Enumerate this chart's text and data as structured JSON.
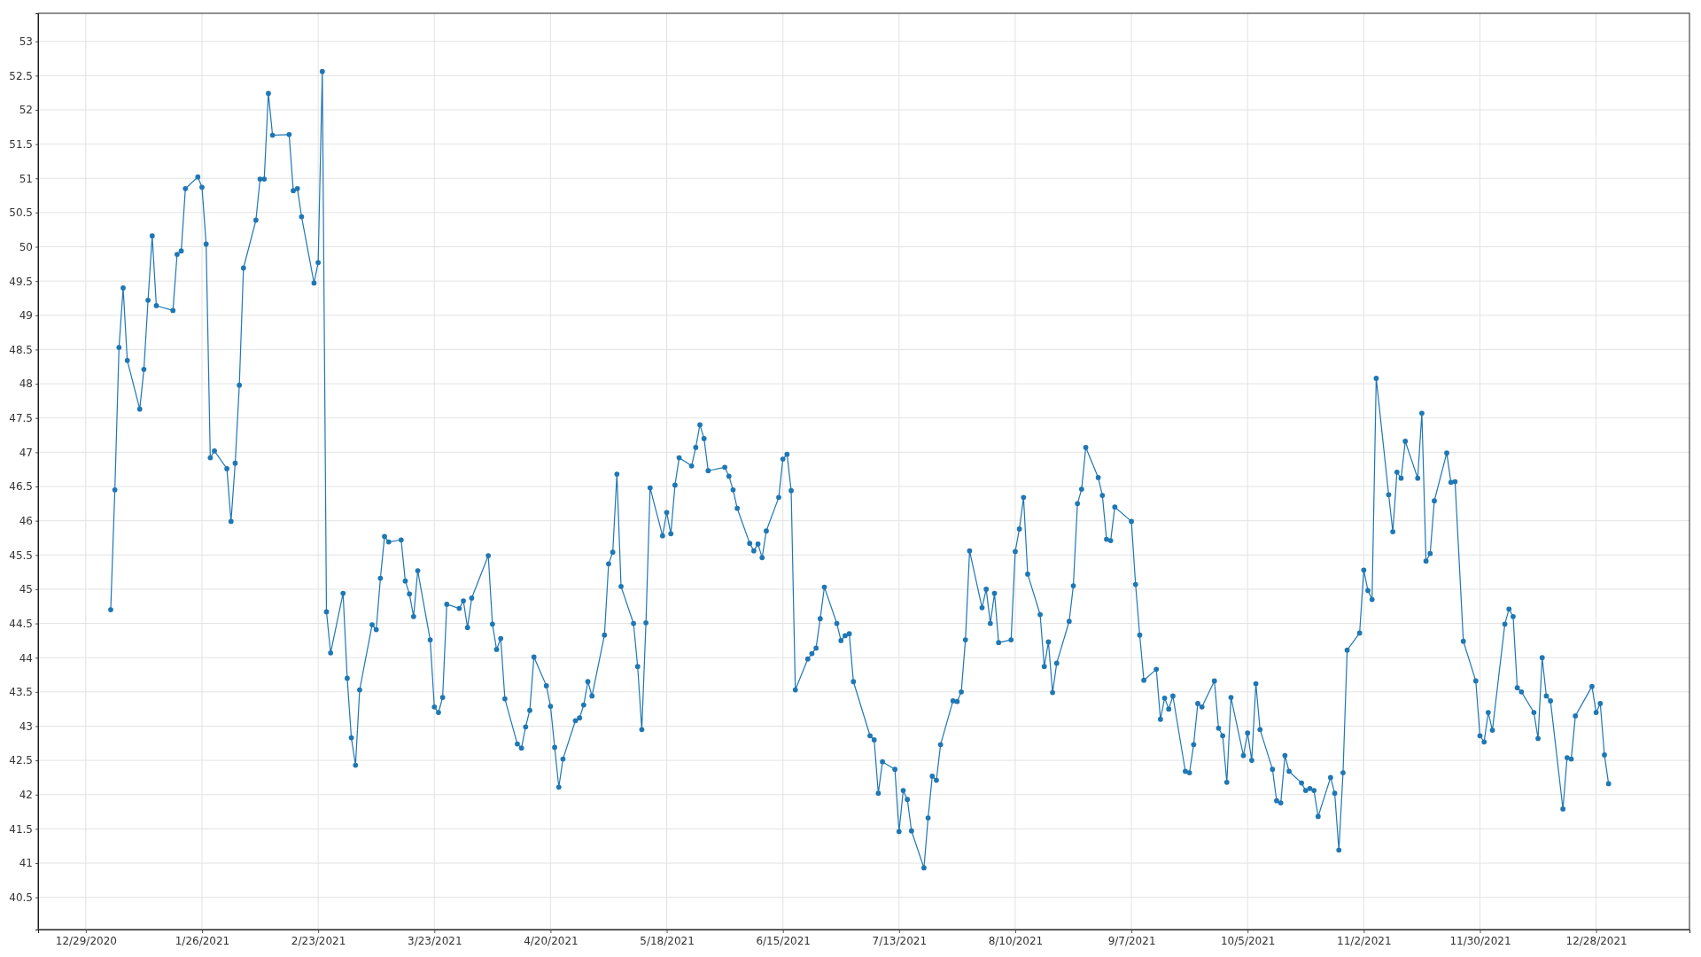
{
  "chart_data": {
    "type": "line",
    "color": "#1f77b4",
    "marker": "circle",
    "grid": true,
    "xlim": [
      "2020-12-17T12:00",
      "2022-01-19T12:00"
    ],
    "ylim": [
      40.03,
      53.41
    ],
    "xticks": [
      {
        "value": "2020-12-29",
        "label": "12/29/2020"
      },
      {
        "value": "2021-01-26",
        "label": "1/26/2021"
      },
      {
        "value": "2021-02-23",
        "label": "2/23/2021"
      },
      {
        "value": "2021-03-23",
        "label": "3/23/2021"
      },
      {
        "value": "2021-04-20",
        "label": "4/20/2021"
      },
      {
        "value": "2021-05-18",
        "label": "5/18/2021"
      },
      {
        "value": "2021-06-15",
        "label": "6/15/2021"
      },
      {
        "value": "2021-07-13",
        "label": "7/13/2021"
      },
      {
        "value": "2021-08-10",
        "label": "8/10/2021"
      },
      {
        "value": "2021-09-07",
        "label": "9/7/2021"
      },
      {
        "value": "2021-10-05",
        "label": "10/5/2021"
      },
      {
        "value": "2021-11-02",
        "label": "11/2/2021"
      },
      {
        "value": "2021-11-30",
        "label": "11/30/2021"
      },
      {
        "value": "2021-12-28",
        "label": "12/28/2021"
      }
    ],
    "yticks": [
      40.5,
      41,
      41.5,
      42,
      42.5,
      43,
      43.5,
      44,
      44.5,
      45,
      45.5,
      46,
      46.5,
      47,
      47.5,
      48,
      48.5,
      49,
      49.5,
      50,
      50.5,
      51,
      51.5,
      52,
      52.5,
      53
    ],
    "x": [
      "2021-01-04",
      "2021-01-05",
      "2021-01-06",
      "2021-01-07",
      "2021-01-08",
      "2021-01-11",
      "2021-01-12",
      "2021-01-13",
      "2021-01-14",
      "2021-01-15",
      "2021-01-19",
      "2021-01-20",
      "2021-01-21",
      "2021-01-22",
      "2021-01-25",
      "2021-01-26",
      "2021-01-27",
      "2021-01-28",
      "2021-01-29",
      "2021-02-01",
      "2021-02-02",
      "2021-02-03",
      "2021-02-04",
      "2021-02-05",
      "2021-02-08",
      "2021-02-09",
      "2021-02-10",
      "2021-02-11",
      "2021-02-12",
      "2021-02-16",
      "2021-02-17",
      "2021-02-18",
      "2021-02-19",
      "2021-02-22",
      "2021-02-23",
      "2021-02-24",
      "2021-02-25",
      "2021-02-26",
      "2021-03-01",
      "2021-03-02",
      "2021-03-03",
      "2021-03-04",
      "2021-03-05",
      "2021-03-08",
      "2021-03-09",
      "2021-03-10",
      "2021-03-11",
      "2021-03-12",
      "2021-03-15",
      "2021-03-16",
      "2021-03-17",
      "2021-03-18",
      "2021-03-19",
      "2021-03-22",
      "2021-03-23",
      "2021-03-24",
      "2021-03-25",
      "2021-03-26",
      "2021-03-29",
      "2021-03-30",
      "2021-03-31",
      "2021-04-01",
      "2021-04-05",
      "2021-04-06",
      "2021-04-07",
      "2021-04-08",
      "2021-04-09",
      "2021-04-12",
      "2021-04-13",
      "2021-04-14",
      "2021-04-15",
      "2021-04-16",
      "2021-04-19",
      "2021-04-20",
      "2021-04-21",
      "2021-04-22",
      "2021-04-23",
      "2021-04-26",
      "2021-04-27",
      "2021-04-28",
      "2021-04-29",
      "2021-04-30",
      "2021-05-03",
      "2021-05-04",
      "2021-05-05",
      "2021-05-06",
      "2021-05-07",
      "2021-05-10",
      "2021-05-11",
      "2021-05-12",
      "2021-05-13",
      "2021-05-14",
      "2021-05-17",
      "2021-05-18",
      "2021-05-19",
      "2021-05-20",
      "2021-05-21",
      "2021-05-24",
      "2021-05-25",
      "2021-05-26",
      "2021-05-27",
      "2021-05-28",
      "2021-06-01",
      "2021-06-02",
      "2021-06-03",
      "2021-06-04",
      "2021-06-07",
      "2021-06-08",
      "2021-06-09",
      "2021-06-10",
      "2021-06-11",
      "2021-06-14",
      "2021-06-15",
      "2021-06-16",
      "2021-06-17",
      "2021-06-18",
      "2021-06-21",
      "2021-06-22",
      "2021-06-23",
      "2021-06-24",
      "2021-06-25",
      "2021-06-28",
      "2021-06-29",
      "2021-06-30",
      "2021-07-01",
      "2021-07-02",
      "2021-07-06",
      "2021-07-07",
      "2021-07-08",
      "2021-07-09",
      "2021-07-12",
      "2021-07-13",
      "2021-07-14",
      "2021-07-15",
      "2021-07-16",
      "2021-07-19",
      "2021-07-20",
      "2021-07-21",
      "2021-07-22",
      "2021-07-23",
      "2021-07-26",
      "2021-07-27",
      "2021-07-28",
      "2021-07-29",
      "2021-07-30",
      "2021-08-02",
      "2021-08-03",
      "2021-08-04",
      "2021-08-05",
      "2021-08-06",
      "2021-08-09",
      "2021-08-10",
      "2021-08-11",
      "2021-08-12",
      "2021-08-13",
      "2021-08-16",
      "2021-08-17",
      "2021-08-18",
      "2021-08-19",
      "2021-08-20",
      "2021-08-23",
      "2021-08-24",
      "2021-08-25",
      "2021-08-26",
      "2021-08-27",
      "2021-08-30",
      "2021-08-31",
      "2021-09-01",
      "2021-09-02",
      "2021-09-03",
      "2021-09-07",
      "2021-09-08",
      "2021-09-09",
      "2021-09-10",
      "2021-09-13",
      "2021-09-14",
      "2021-09-15",
      "2021-09-16",
      "2021-09-17",
      "2021-09-20",
      "2021-09-21",
      "2021-09-22",
      "2021-09-23",
      "2021-09-24",
      "2021-09-27",
      "2021-09-28",
      "2021-09-29",
      "2021-09-30",
      "2021-10-01",
      "2021-10-04",
      "2021-10-05",
      "2021-10-06",
      "2021-10-07",
      "2021-10-08",
      "2021-10-11",
      "2021-10-12",
      "2021-10-13",
      "2021-10-14",
      "2021-10-15",
      "2021-10-18",
      "2021-10-19",
      "2021-10-20",
      "2021-10-21",
      "2021-10-22",
      "2021-10-25",
      "2021-10-26",
      "2021-10-27",
      "2021-10-28",
      "2021-10-29",
      "2021-11-01",
      "2021-11-02",
      "2021-11-03",
      "2021-11-04",
      "2021-11-05",
      "2021-11-08",
      "2021-11-09",
      "2021-11-10",
      "2021-11-11",
      "2021-11-12",
      "2021-11-15",
      "2021-11-16",
      "2021-11-17",
      "2021-11-18",
      "2021-11-19",
      "2021-11-22",
      "2021-11-23",
      "2021-11-24",
      "2021-11-26",
      "2021-11-29",
      "2021-11-30",
      "2021-12-01",
      "2021-12-02",
      "2021-12-03",
      "2021-12-06",
      "2021-12-07",
      "2021-12-08",
      "2021-12-09",
      "2021-12-10",
      "2021-12-13",
      "2021-12-14",
      "2021-12-15",
      "2021-12-16",
      "2021-12-17",
      "2021-12-20",
      "2021-12-21",
      "2021-12-22",
      "2021-12-23",
      "2021-12-27",
      "2021-12-28",
      "2021-12-29",
      "2021-12-30",
      "2021-12-31"
    ],
    "values": [
      44.7,
      46.45,
      48.53,
      49.4,
      48.34,
      47.63,
      48.21,
      49.22,
      50.16,
      49.14,
      49.07,
      49.89,
      49.94,
      50.85,
      51.02,
      50.87,
      50.04,
      46.92,
      47.02,
      46.76,
      45.99,
      46.84,
      47.98,
      49.69,
      50.39,
      50.99,
      50.99,
      52.24,
      51.63,
      51.64,
      50.82,
      50.85,
      50.44,
      49.47,
      49.77,
      52.56,
      44.67,
      44.07,
      44.94,
      43.7,
      42.83,
      42.43,
      43.53,
      44.48,
      44.41,
      45.16,
      45.77,
      45.69,
      45.72,
      45.12,
      44.93,
      44.6,
      45.27,
      44.26,
      43.28,
      43.2,
      43.42,
      44.78,
      44.72,
      44.83,
      44.44,
      44.87,
      45.49,
      44.49,
      44.12,
      44.28,
      43.4,
      42.74,
      42.68,
      42.99,
      43.23,
      44.01,
      43.59,
      43.29,
      42.69,
      42.11,
      42.52,
      43.08,
      43.12,
      43.31,
      43.65,
      43.44,
      44.33,
      45.37,
      45.54,
      46.68,
      45.04,
      44.5,
      43.87,
      42.95,
      44.51,
      46.48,
      45.78,
      46.12,
      45.81,
      46.52,
      46.92,
      46.8,
      47.07,
      47.4,
      47.2,
      46.73,
      46.78,
      46.65,
      46.45,
      46.18,
      45.67,
      45.56,
      45.66,
      45.46,
      45.85,
      46.34,
      46.9,
      46.97,
      46.44,
      43.53,
      43.98,
      44.06,
      44.14,
      44.57,
      45.03,
      44.5,
      44.25,
      44.32,
      44.35,
      43.65,
      42.86,
      42.8,
      42.02,
      42.48,
      42.37,
      41.46,
      42.06,
      41.93,
      41.47,
      40.93,
      41.66,
      42.27,
      42.21,
      42.73,
      43.37,
      43.36,
      43.5,
      44.26,
      45.56,
      44.73,
      45.0,
      44.5,
      44.94,
      44.22,
      44.26,
      45.55,
      45.88,
      46.34,
      45.22,
      44.63,
      43.87,
      44.23,
      43.49,
      43.92,
      44.53,
      45.05,
      46.25,
      46.46,
      47.07,
      46.63,
      46.37,
      45.73,
      45.71,
      46.2,
      45.99,
      45.07,
      44.33,
      43.67,
      43.83,
      43.1,
      43.41,
      43.25,
      43.44,
      42.34,
      42.32,
      42.73,
      43.33,
      43.28,
      43.66,
      42.97,
      42.86,
      42.18,
      43.42,
      42.57,
      42.9,
      42.5,
      43.62,
      42.95,
      42.37,
      41.91,
      41.88,
      42.57,
      42.34,
      42.17,
      42.06,
      42.09,
      42.06,
      41.68,
      42.25,
      42.02,
      41.19,
      42.32,
      44.11,
      44.36,
      45.28,
      44.98,
      44.85,
      48.08,
      46.38,
      45.84,
      46.71,
      46.62,
      47.16,
      46.62,
      47.57,
      45.41,
      45.52,
      46.29,
      46.99,
      46.56,
      46.57,
      44.24,
      43.66,
      42.86,
      42.77,
      43.2,
      42.94,
      44.49,
      44.71,
      44.6,
      43.56,
      43.5,
      43.2,
      42.82,
      44.0,
      43.44,
      43.37,
      41.79,
      42.54,
      42.52,
      43.15,
      43.58,
      43.2,
      43.33,
      42.58,
      42.16
    ]
  }
}
